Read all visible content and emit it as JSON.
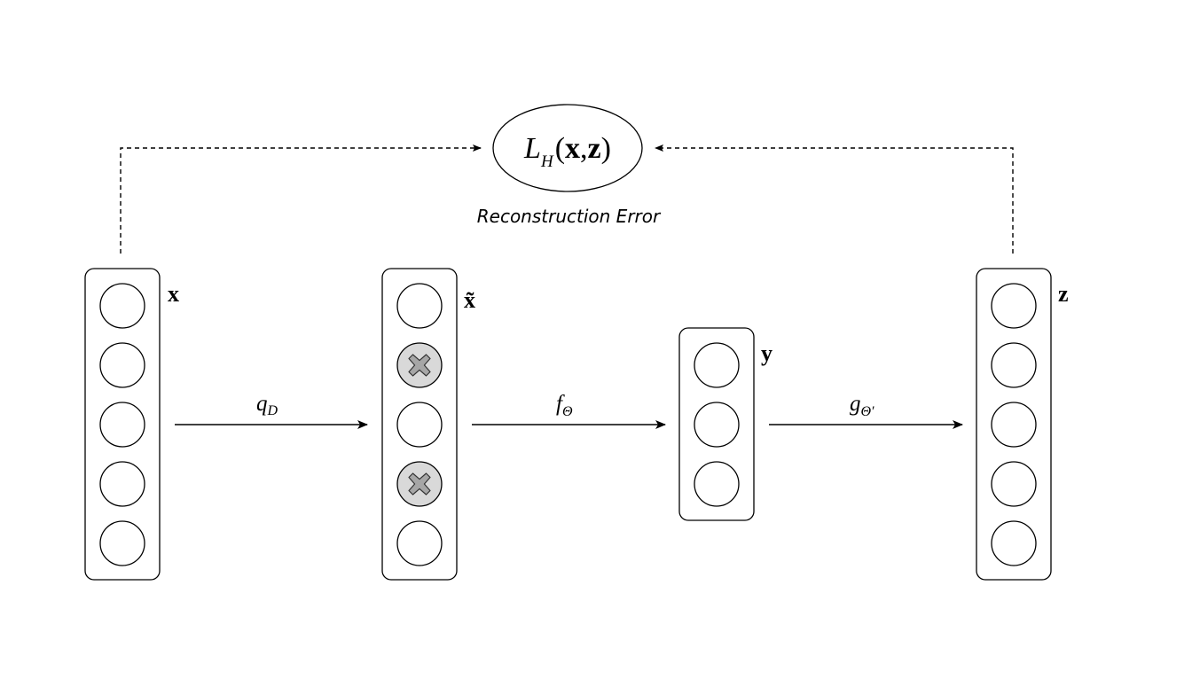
{
  "layers": [
    {
      "id": "x",
      "label": "x",
      "units": 5,
      "corrupted": []
    },
    {
      "id": "x-tilde",
      "label": "x̃",
      "units": 5,
      "corrupted": [
        1,
        3
      ]
    },
    {
      "id": "y",
      "label": "y",
      "units": 3,
      "corrupted": []
    },
    {
      "id": "z",
      "label": "z",
      "units": 5,
      "corrupted": []
    }
  ],
  "edges": [
    {
      "from": "x",
      "to": "x-tilde",
      "symbol": "q",
      "subscript": "D",
      "subscript_italic": true
    },
    {
      "from": "x-tilde",
      "to": "y",
      "symbol": "f",
      "subscript": "Θ",
      "subscript_italic": false
    },
    {
      "from": "y",
      "to": "z",
      "symbol": "g",
      "subscript": "Θ′",
      "subscript_italic": false
    }
  ],
  "loss": {
    "symbol": "L",
    "subscript": "H",
    "open_paren": "(",
    "arg1": "x",
    "comma": ",",
    "arg2": "z",
    "close_paren": ")",
    "caption": "Reconstruction Error"
  },
  "feedback": [
    {
      "from": "x",
      "to": "loss"
    },
    {
      "from": "z",
      "to": "loss"
    }
  ],
  "colors": {
    "stroke": "#000000",
    "corrupted_fill": "#d9d9d9",
    "xmark_fill": "#a6a6a6"
  },
  "icons": {
    "corrupted_unit": "x-cross-icon"
  }
}
